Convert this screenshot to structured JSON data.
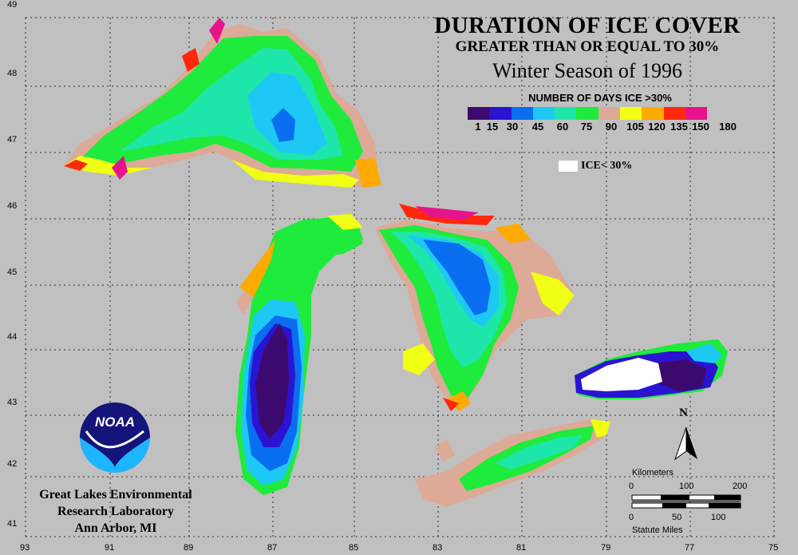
{
  "title": "DURATION OF ICE COVER",
  "subtitle": "GREATER THAN OR EQUAL TO 30%",
  "season": "Winter Season of 1996",
  "legend": {
    "title": "NUMBER OF DAYS ICE >30%",
    "ticks": [
      "1",
      "15",
      "30",
      "45",
      "60",
      "75",
      "90",
      "105",
      "120",
      "135",
      "150",
      "180"
    ],
    "colors": [
      "#3c0a6e",
      "#2a14d2",
      "#0a6ef0",
      "#1ec8f5",
      "#1ee6aa",
      "#1eeb3c",
      "#dcaa96",
      "#f0ff14",
      "#ffaa00",
      "#ff280a",
      "#e6148c"
    ],
    "ice_less_label": "ICE< 30%"
  },
  "axes": {
    "longitudes": [
      "93",
      "91",
      "89",
      "87",
      "85",
      "83",
      "81",
      "79",
      "77",
      "75"
    ],
    "latitudes": [
      "49",
      "48",
      "47",
      "46",
      "45",
      "44",
      "43",
      "42",
      "41"
    ]
  },
  "logo_text": "NOAA",
  "organization": [
    "Great Lakes Environmental",
    "Research Laboratory",
    "Ann Arbor, MI"
  ],
  "north_label": "N",
  "scale": {
    "km_title": "Kilometers",
    "km_ticks": [
      "0",
      "100",
      "200"
    ],
    "mi_ticks": [
      "0",
      "50",
      "100"
    ],
    "mi_title": "Statute Miles"
  }
}
